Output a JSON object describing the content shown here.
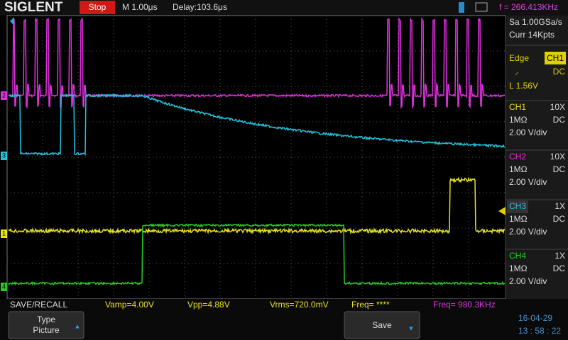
{
  "header": {
    "brand": "SIGLENT",
    "status": "Stop",
    "timebase": "M 1.00μs",
    "delay": "Delay:103.6μs",
    "frequency": "f = 266.413KHz"
  },
  "acquisition": {
    "sample_rate": "Sa 1.00GSa/s",
    "memory": "Curr 14Kpts"
  },
  "trigger": {
    "type": "Edge",
    "source": "CH1",
    "coupling": "DC",
    "level": "L  1.56V"
  },
  "channels": [
    {
      "name": "CH1",
      "probe": "10X",
      "impedance": "1MΩ",
      "coupling": "DC",
      "scale": "2.00 V/div"
    },
    {
      "name": "CH2",
      "probe": "10X",
      "impedance": "1MΩ",
      "coupling": "DC",
      "scale": "2.00 V/div"
    },
    {
      "name": "CH3",
      "probe": "1X",
      "impedance": "1MΩ",
      "coupling": "DC",
      "scale": "2.00 V/div"
    },
    {
      "name": "CH4",
      "probe": "1X",
      "impedance": "1MΩ",
      "coupling": "DC",
      "scale": "2.00 V/div"
    }
  ],
  "markers": [
    "2",
    "3",
    "1",
    "4"
  ],
  "measurements": {
    "menu": "SAVE/RECALL",
    "items": [
      "Vamp=4.00V",
      "Vpp=4.88V",
      "Vrms=720.0mV",
      "Freq= ****",
      "Freq= 980.3KHz"
    ]
  },
  "softkeys": [
    {
      "label": "Type",
      "value": "Picture"
    },
    {
      "label": "Save"
    }
  ],
  "clock": {
    "date": "16-04-29",
    "time": "13 : 58 : 22"
  }
}
